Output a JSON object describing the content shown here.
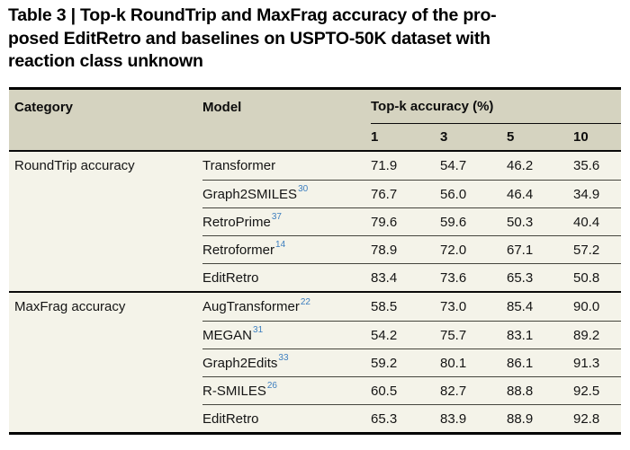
{
  "title": {
    "lines": [
      "Table 3 | Top-k RoundTrip and MaxFrag accuracy of the pro-",
      "posed EditRetro and baselines on USPTO-50K dataset with",
      "reaction class unknown"
    ]
  },
  "table": {
    "header": {
      "category": "Category",
      "model": "Model",
      "topk": "Top-k accuracy (%)",
      "ks": [
        "1",
        "3",
        "5",
        "10"
      ]
    },
    "groups": [
      {
        "category": "RoundTrip accuracy",
        "rows": [
          {
            "model": "Transformer",
            "ref": "",
            "values": [
              "71.9",
              "54.7",
              "46.2",
              "35.6"
            ]
          },
          {
            "model": "Graph2SMILES",
            "ref": "30",
            "values": [
              "76.7",
              "56.0",
              "46.4",
              "34.9"
            ]
          },
          {
            "model": "RetroPrime",
            "ref": "37",
            "values": [
              "79.6",
              "59.6",
              "50.3",
              "40.4"
            ]
          },
          {
            "model": "Retroformer",
            "ref": "14",
            "values": [
              "78.9",
              "72.0",
              "67.1",
              "57.2"
            ]
          },
          {
            "model": "EditRetro",
            "ref": "",
            "values": [
              "83.4",
              "73.6",
              "65.3",
              "50.8"
            ]
          }
        ]
      },
      {
        "category": "MaxFrag accuracy",
        "rows": [
          {
            "model": "AugTransformer",
            "ref": "22",
            "values": [
              "58.5",
              "73.0",
              "85.4",
              "90.0"
            ]
          },
          {
            "model": "MEGAN",
            "ref": "31",
            "values": [
              "54.2",
              "75.7",
              "83.1",
              "89.2"
            ]
          },
          {
            "model": "Graph2Edits",
            "ref": "33",
            "values": [
              "59.2",
              "80.1",
              "86.1",
              "91.3"
            ]
          },
          {
            "model": "R-SMILES",
            "ref": "26",
            "values": [
              "60.5",
              "82.7",
              "88.8",
              "92.5"
            ]
          },
          {
            "model": "EditRetro",
            "ref": "",
            "values": [
              "65.3",
              "83.9",
              "88.9",
              "92.8"
            ]
          }
        ]
      }
    ]
  },
  "colors": {
    "header_bg": "#d5d3c0",
    "body_bg": "#f4f3e9",
    "citation_blue": "#3d7ebf",
    "rule_black": "#000000"
  },
  "chart_data": {
    "type": "table",
    "title": "Table 3 | Top-k RoundTrip and MaxFrag accuracy of the proposed EditRetro and baselines on USPTO-50K dataset with reaction class unknown",
    "columns": [
      "Category",
      "Model",
      "Top-1",
      "Top-3",
      "Top-5",
      "Top-10"
    ],
    "rows": [
      [
        "RoundTrip accuracy",
        "Transformer",
        71.9,
        54.7,
        46.2,
        35.6
      ],
      [
        "RoundTrip accuracy",
        "Graph2SMILES [30]",
        76.7,
        56.0,
        46.4,
        34.9
      ],
      [
        "RoundTrip accuracy",
        "RetroPrime [37]",
        79.6,
        59.6,
        50.3,
        40.4
      ],
      [
        "RoundTrip accuracy",
        "Retroformer [14]",
        78.9,
        72.0,
        67.1,
        57.2
      ],
      [
        "RoundTrip accuracy",
        "EditRetro",
        83.4,
        73.6,
        65.3,
        50.8
      ],
      [
        "MaxFrag accuracy",
        "AugTransformer [22]",
        58.5,
        73.0,
        85.4,
        90.0
      ],
      [
        "MaxFrag accuracy",
        "MEGAN [31]",
        54.2,
        75.7,
        83.1,
        89.2
      ],
      [
        "MaxFrag accuracy",
        "Graph2Edits [33]",
        59.2,
        80.1,
        86.1,
        91.3
      ],
      [
        "MaxFrag accuracy",
        "R-SMILES [26]",
        60.5,
        82.7,
        88.8,
        92.5
      ],
      [
        "MaxFrag accuracy",
        "EditRetro",
        65.3,
        83.9,
        88.9,
        92.8
      ]
    ]
  }
}
